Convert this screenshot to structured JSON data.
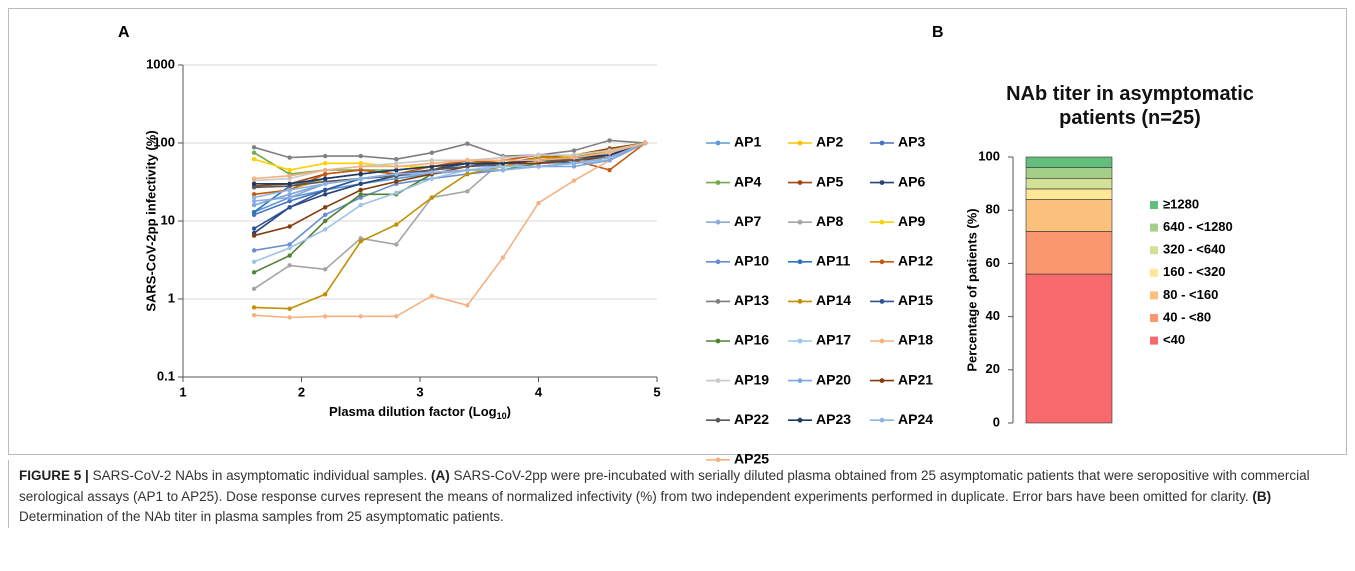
{
  "chart_data": [
    {
      "type": "line",
      "panel": "A",
      "log_scale": true,
      "grid": true,
      "legend_position": "right",
      "ylabel": "SARS-CoV-2pp infectivity (%)",
      "xlabel": {
        "text": "Plasma dilution factor (Log",
        "sub": "10",
        "end": ")"
      },
      "x": [
        1.6,
        1.9,
        2.2,
        2.5,
        2.8,
        3.1,
        3.4,
        3.7,
        4.0,
        4.3,
        4.6,
        4.9
      ],
      "xlim": [
        1,
        5
      ],
      "xticks": [
        1,
        2,
        3,
        4,
        5
      ],
      "ylim": [
        0.1,
        1000
      ],
      "yticks": [
        0.1,
        1,
        10,
        100,
        1000
      ],
      "series": [
        {
          "name": "AP1",
          "color": "#5b9bd5",
          "values": [
            13,
            20,
            25,
            30,
            35,
            40,
            45,
            50,
            50,
            55,
            60,
            100
          ]
        },
        {
          "name": "AP2",
          "color": "#ffc000",
          "values": [
            22,
            25,
            35,
            40,
            45,
            50,
            55,
            60,
            60,
            65,
            75,
            100
          ]
        },
        {
          "name": "AP3",
          "color": "#4472c4",
          "values": [
            12,
            18,
            25,
            35,
            40,
            45,
            50,
            55,
            60,
            60,
            70,
            100
          ]
        },
        {
          "name": "AP4",
          "color": "#70ad47",
          "values": [
            75,
            40,
            45,
            45,
            45,
            50,
            55,
            55,
            60,
            65,
            85,
            100
          ]
        },
        {
          "name": "AP5",
          "color": "#9e480e",
          "values": [
            28,
            30,
            40,
            45,
            40,
            45,
            60,
            55,
            65,
            70,
            85,
            100
          ]
        },
        {
          "name": "AP6",
          "color": "#264478",
          "values": [
            7,
            15,
            22,
            30,
            38,
            45,
            55,
            50,
            55,
            60,
            70,
            100
          ]
        },
        {
          "name": "AP7",
          "color": "#8faadc",
          "values": [
            18,
            20,
            30,
            35,
            40,
            45,
            50,
            50,
            55,
            55,
            65,
            100
          ]
        },
        {
          "name": "AP8",
          "color": "#a5a5a5",
          "values": [
            1.35,
            2.7,
            2.4,
            6,
            5,
            20,
            24,
            60,
            70,
            60,
            75,
            100
          ]
        },
        {
          "name": "AP9",
          "color": "#ffd000",
          "values": [
            62,
            45,
            55,
            55,
            50,
            50,
            60,
            60,
            60,
            70,
            80,
            100
          ]
        },
        {
          "name": "AP10",
          "color": "#698ed0",
          "values": [
            4.2,
            5,
            12,
            20,
            30,
            35,
            40,
            45,
            50,
            55,
            60,
            100
          ]
        },
        {
          "name": "AP11",
          "color": "#2e75b6",
          "values": [
            13,
            28,
            35,
            40,
            45,
            50,
            55,
            55,
            60,
            55,
            65,
            100
          ]
        },
        {
          "name": "AP12",
          "color": "#c55a11",
          "values": [
            22,
            25,
            40,
            45,
            40,
            50,
            60,
            60,
            70,
            60,
            45,
            100
          ]
        },
        {
          "name": "AP13",
          "color": "#7f7f7f",
          "values": [
            88,
            65,
            68,
            68,
            62,
            75,
            98,
            68,
            70,
            80,
            108,
            100
          ]
        },
        {
          "name": "AP14",
          "color": "#bf9000",
          "values": [
            0.78,
            0.75,
            1.15,
            5.5,
            9,
            20,
            40,
            50,
            65,
            65,
            80,
            100
          ]
        },
        {
          "name": "AP15",
          "color": "#2f5597",
          "values": [
            8,
            15,
            25,
            35,
            40,
            45,
            50,
            55,
            60,
            60,
            65,
            100
          ]
        },
        {
          "name": "AP16",
          "color": "#548235",
          "values": [
            2.2,
            3.6,
            10,
            22,
            22,
            40,
            45,
            45,
            55,
            60,
            70,
            100
          ]
        },
        {
          "name": "AP17",
          "color": "#9dc3e6",
          "values": [
            3,
            4.5,
            7.8,
            16,
            23,
            35,
            45,
            50,
            50,
            55,
            60,
            100
          ]
        },
        {
          "name": "AP18",
          "color": "#f4b183",
          "values": [
            0.62,
            0.58,
            0.6,
            0.6,
            0.6,
            1.1,
            0.83,
            3.4,
            17,
            33,
            60,
            100
          ]
        },
        {
          "name": "AP19",
          "color": "#c9c9c9",
          "values": [
            33,
            35,
            45,
            50,
            55,
            60,
            60,
            65,
            70,
            70,
            80,
            100
          ]
        },
        {
          "name": "AP20",
          "color": "#7ea6e0",
          "values": [
            16,
            22,
            30,
            35,
            38,
            40,
            45,
            45,
            50,
            50,
            60,
            100
          ]
        },
        {
          "name": "AP21",
          "color": "#843c0c",
          "values": [
            6.5,
            8.5,
            15,
            25,
            32,
            40,
            50,
            55,
            55,
            60,
            65,
            100
          ]
        },
        {
          "name": "AP22",
          "color": "#595959",
          "values": [
            27,
            28,
            32,
            35,
            38,
            45,
            50,
            55,
            60,
            60,
            70,
            100
          ]
        },
        {
          "name": "AP23",
          "color": "#1f3864",
          "values": [
            30,
            30,
            35,
            40,
            45,
            50,
            55,
            55,
            60,
            65,
            70,
            100
          ]
        },
        {
          "name": "AP24",
          "color": "#8fb4e3",
          "values": [
            20,
            25,
            30,
            35,
            40,
            42,
            45,
            45,
            50,
            55,
            65,
            100
          ]
        },
        {
          "name": "AP25",
          "color": "#f4b183",
          "values": [
            35,
            38,
            45,
            50,
            50,
            55,
            60,
            60,
            60,
            65,
            75,
            100
          ]
        }
      ]
    },
    {
      "type": "stacked_bar",
      "panel": "B",
      "title": "NAb titer in asymptomatic patients (n=25)",
      "ylabel": "Percentage of patients (%)",
      "ylim": [
        0,
        100
      ],
      "yticks": [
        0,
        20,
        40,
        60,
        80,
        100
      ],
      "legend_position": "right",
      "series": [
        {
          "name": "<40",
          "color": "#f8696b",
          "values": [
            56
          ]
        },
        {
          "name": "40 - <80",
          "color": "#f9976f",
          "values": [
            16
          ]
        },
        {
          "name": "80 - <160",
          "color": "#fac07c",
          "values": [
            12
          ]
        },
        {
          "name": "160 - <320",
          "color": "#fde898",
          "values": [
            4
          ]
        },
        {
          "name": "320 - <640",
          "color": "#d3e196",
          "values": [
            4
          ]
        },
        {
          "name": "640 - <1280",
          "color": "#a3cf88",
          "values": [
            4
          ]
        },
        {
          "name": "≥1280",
          "color": "#63be7b",
          "values": [
            4
          ]
        }
      ]
    }
  ],
  "caption": {
    "label": "FIGURE 5 |",
    "intro": "SARS-CoV-2 NAbs in asymptomatic individual samples.",
    "a_label": "(A)",
    "a_text": "SARS-CoV-2pp were pre-incubated with serially diluted plasma obtained from 25 asymptomatic patients that were seropositive with commercial serological assays (AP1 to AP25). Dose response curves represent the means of normalized infectivity (%) from two independent experiments performed in duplicate. Error bars have been omitted for clarity.",
    "b_label": "(B)",
    "b_text": "Determination of the NAb titer in plasma samples from 25 asymptomatic patients."
  }
}
